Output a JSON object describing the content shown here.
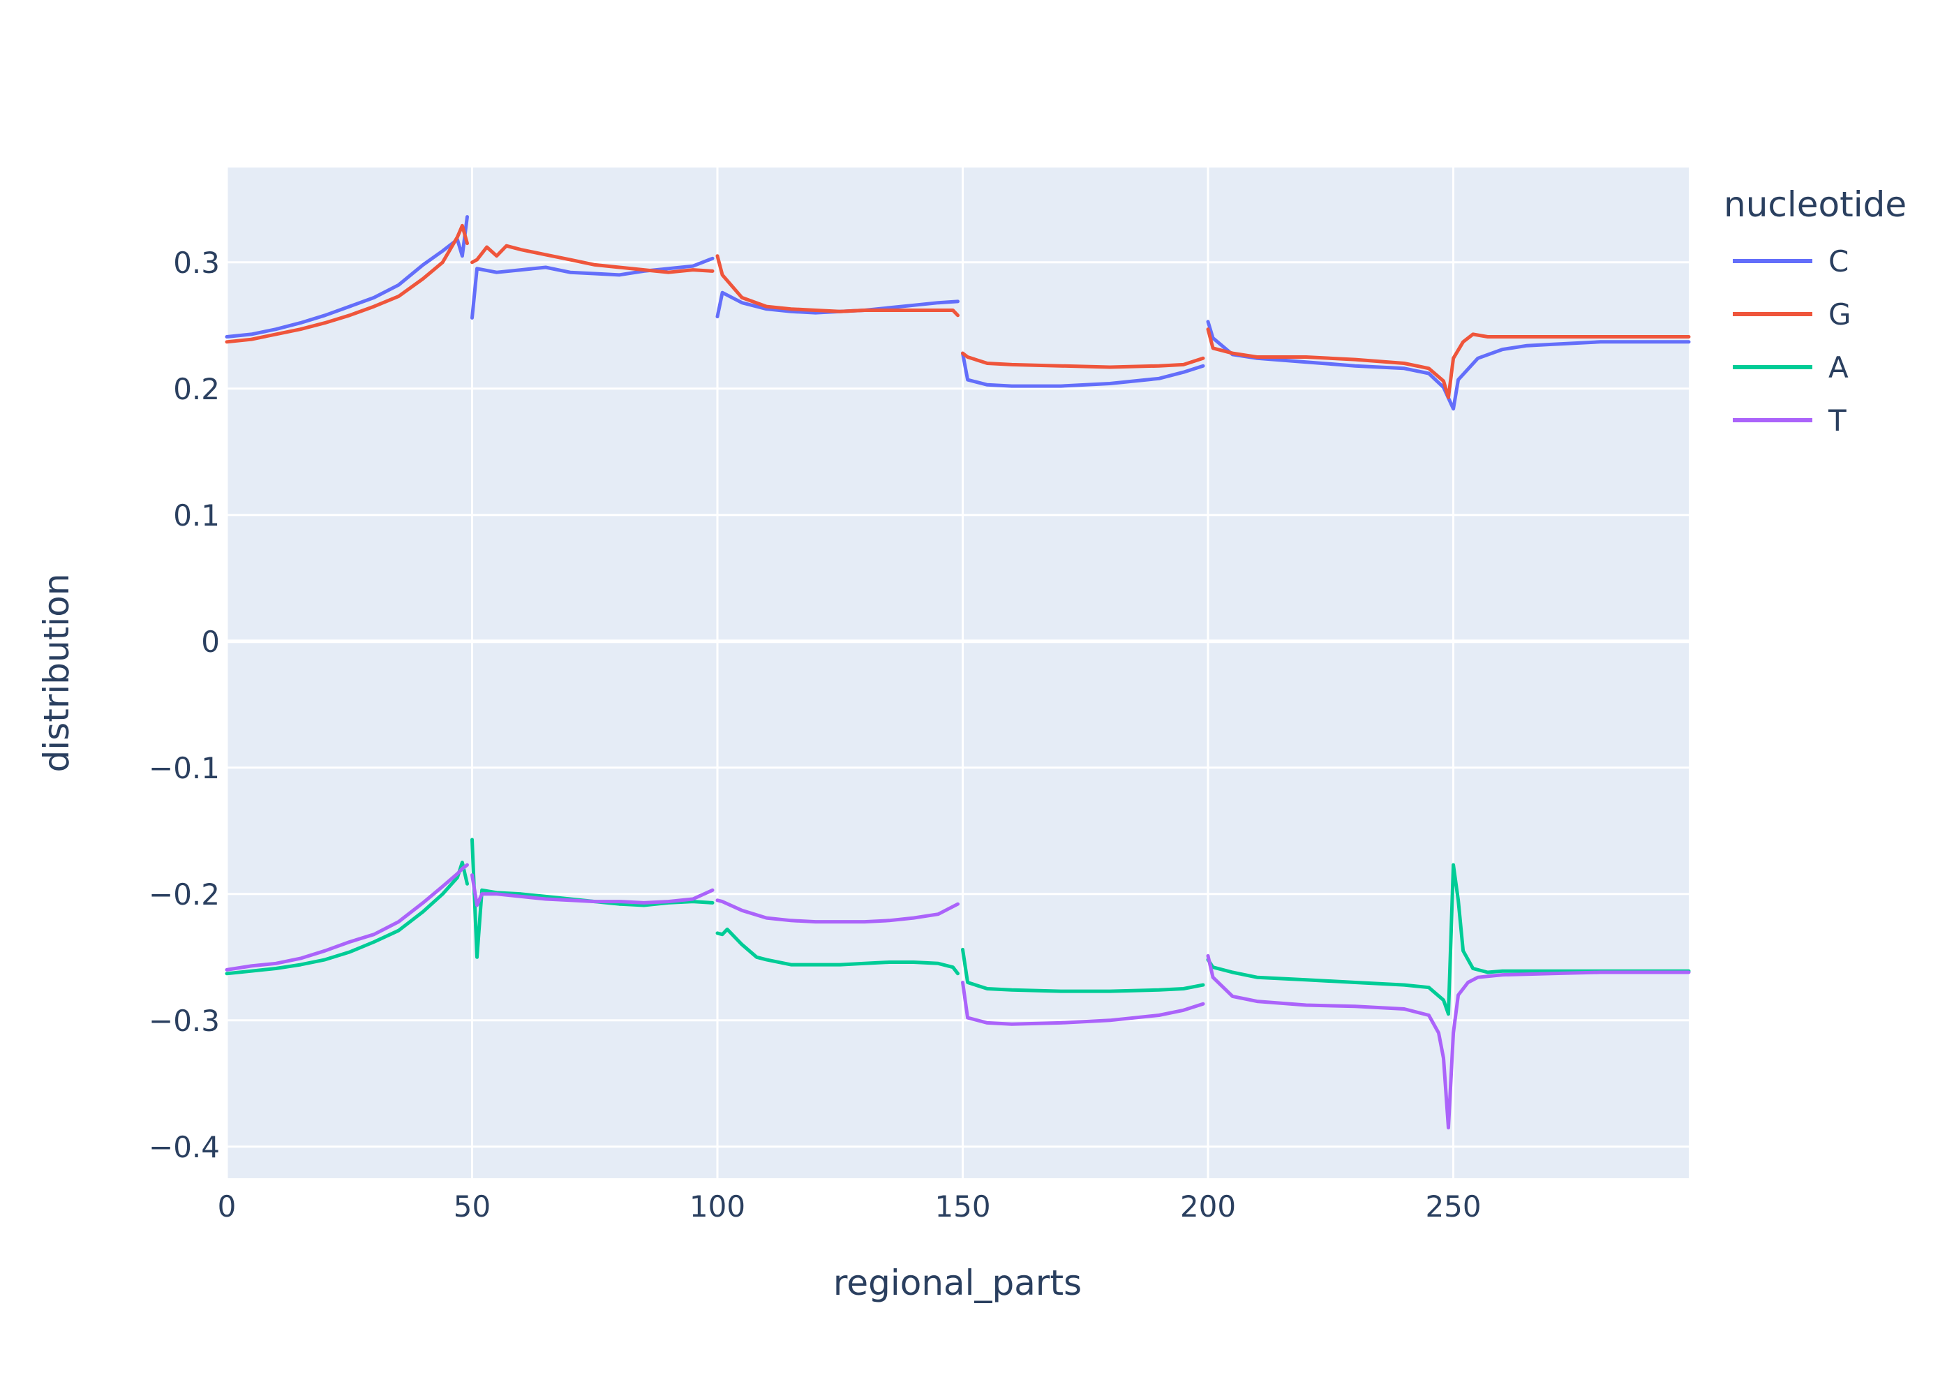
{
  "chart_data": {
    "type": "line",
    "xlabel": "regional_parts",
    "ylabel": "distribution",
    "xlim": [
      0,
      298
    ],
    "ylim": [
      -0.425,
      0.375
    ],
    "x_ticks": [
      0,
      50,
      100,
      150,
      200,
      250
    ],
    "y_ticks": [
      0.3,
      0.2,
      0.1,
      0,
      -0.1,
      -0.2,
      -0.3,
      -0.4
    ],
    "y_tick_labels": [
      "0.3",
      "0.2",
      "0.1",
      "0",
      "−0.1",
      "−0.2",
      "−0.3",
      "−0.4"
    ],
    "grid": true,
    "legend": {
      "title": "nucleotide",
      "placement": "right"
    },
    "segment_breaks": [
      50,
      100,
      150,
      200
    ],
    "series": [
      {
        "name": "C",
        "color": "#636efa",
        "points": [
          [
            0,
            0.241
          ],
          [
            5,
            0.243
          ],
          [
            10,
            0.247
          ],
          [
            15,
            0.252
          ],
          [
            20,
            0.258
          ],
          [
            25,
            0.265
          ],
          [
            30,
            0.272
          ],
          [
            35,
            0.282
          ],
          [
            40,
            0.298
          ],
          [
            44,
            0.309
          ],
          [
            47,
            0.318
          ],
          [
            48,
            0.305
          ],
          [
            49,
            0.336
          ],
          [
            50,
            0.256
          ],
          [
            51,
            0.295
          ],
          [
            55,
            0.292
          ],
          [
            60,
            0.294
          ],
          [
            65,
            0.296
          ],
          [
            70,
            0.292
          ],
          [
            75,
            0.291
          ],
          [
            80,
            0.29
          ],
          [
            85,
            0.293
          ],
          [
            90,
            0.295
          ],
          [
            95,
            0.297
          ],
          [
            99,
            0.303
          ],
          [
            100,
            0.257
          ],
          [
            101,
            0.276
          ],
          [
            105,
            0.268
          ],
          [
            110,
            0.263
          ],
          [
            115,
            0.261
          ],
          [
            120,
            0.26
          ],
          [
            125,
            0.261
          ],
          [
            130,
            0.262
          ],
          [
            135,
            0.264
          ],
          [
            140,
            0.266
          ],
          [
            145,
            0.268
          ],
          [
            149,
            0.269
          ],
          [
            150,
            0.228
          ],
          [
            151,
            0.207
          ],
          [
            155,
            0.203
          ],
          [
            160,
            0.202
          ],
          [
            170,
            0.202
          ],
          [
            180,
            0.204
          ],
          [
            190,
            0.208
          ],
          [
            195,
            0.213
          ],
          [
            199,
            0.218
          ],
          [
            200,
            0.253
          ],
          [
            201,
            0.24
          ],
          [
            205,
            0.227
          ],
          [
            210,
            0.224
          ],
          [
            220,
            0.221
          ],
          [
            230,
            0.218
          ],
          [
            240,
            0.216
          ],
          [
            245,
            0.212
          ],
          [
            248,
            0.201
          ],
          [
            250,
            0.184
          ],
          [
            251,
            0.207
          ],
          [
            255,
            0.224
          ],
          [
            260,
            0.231
          ],
          [
            265,
            0.234
          ],
          [
            270,
            0.235
          ],
          [
            280,
            0.237
          ],
          [
            290,
            0.237
          ],
          [
            298,
            0.237
          ]
        ]
      },
      {
        "name": "G",
        "color": "#ef553b",
        "points": [
          [
            0,
            0.237
          ],
          [
            5,
            0.239
          ],
          [
            10,
            0.243
          ],
          [
            15,
            0.247
          ],
          [
            20,
            0.252
          ],
          [
            25,
            0.258
          ],
          [
            30,
            0.265
          ],
          [
            35,
            0.273
          ],
          [
            40,
            0.287
          ],
          [
            44,
            0.3
          ],
          [
            47,
            0.32
          ],
          [
            48,
            0.329
          ],
          [
            49,
            0.315
          ],
          [
            50,
            0.3
          ],
          [
            51,
            0.302
          ],
          [
            53,
            0.312
          ],
          [
            55,
            0.305
          ],
          [
            57,
            0.313
          ],
          [
            60,
            0.31
          ],
          [
            65,
            0.306
          ],
          [
            70,
            0.302
          ],
          [
            75,
            0.298
          ],
          [
            80,
            0.296
          ],
          [
            85,
            0.294
          ],
          [
            90,
            0.292
          ],
          [
            95,
            0.294
          ],
          [
            99,
            0.293
          ],
          [
            100,
            0.305
          ],
          [
            101,
            0.29
          ],
          [
            105,
            0.272
          ],
          [
            110,
            0.265
          ],
          [
            115,
            0.263
          ],
          [
            120,
            0.262
          ],
          [
            125,
            0.261
          ],
          [
            130,
            0.262
          ],
          [
            135,
            0.262
          ],
          [
            140,
            0.262
          ],
          [
            145,
            0.262
          ],
          [
            148,
            0.262
          ],
          [
            149,
            0.258
          ],
          [
            150,
            0.228
          ],
          [
            151,
            0.225
          ],
          [
            155,
            0.22
          ],
          [
            160,
            0.219
          ],
          [
            170,
            0.218
          ],
          [
            180,
            0.217
          ],
          [
            190,
            0.218
          ],
          [
            195,
            0.219
          ],
          [
            199,
            0.224
          ],
          [
            200,
            0.247
          ],
          [
            201,
            0.232
          ],
          [
            205,
            0.228
          ],
          [
            210,
            0.225
          ],
          [
            220,
            0.225
          ],
          [
            230,
            0.223
          ],
          [
            240,
            0.22
          ],
          [
            245,
            0.216
          ],
          [
            248,
            0.206
          ],
          [
            249,
            0.193
          ],
          [
            250,
            0.224
          ],
          [
            252,
            0.237
          ],
          [
            254,
            0.243
          ],
          [
            257,
            0.241
          ],
          [
            260,
            0.241
          ],
          [
            270,
            0.241
          ],
          [
            280,
            0.241
          ],
          [
            290,
            0.241
          ],
          [
            298,
            0.241
          ]
        ]
      },
      {
        "name": "A",
        "color": "#00cc96",
        "points": [
          [
            0,
            -0.263
          ],
          [
            5,
            -0.261
          ],
          [
            10,
            -0.259
          ],
          [
            15,
            -0.256
          ],
          [
            20,
            -0.252
          ],
          [
            25,
            -0.246
          ],
          [
            30,
            -0.238
          ],
          [
            35,
            -0.229
          ],
          [
            40,
            -0.214
          ],
          [
            44,
            -0.2
          ],
          [
            47,
            -0.187
          ],
          [
            48,
            -0.175
          ],
          [
            49,
            -0.192
          ],
          [
            50,
            -0.157
          ],
          [
            51,
            -0.25
          ],
          [
            52,
            -0.197
          ],
          [
            55,
            -0.199
          ],
          [
            60,
            -0.2
          ],
          [
            65,
            -0.202
          ],
          [
            70,
            -0.204
          ],
          [
            75,
            -0.206
          ],
          [
            80,
            -0.208
          ],
          [
            85,
            -0.209
          ],
          [
            90,
            -0.207
          ],
          [
            95,
            -0.206
          ],
          [
            99,
            -0.207
          ],
          [
            100,
            -0.231
          ],
          [
            101,
            -0.232
          ],
          [
            102,
            -0.228
          ],
          [
            105,
            -0.24
          ],
          [
            108,
            -0.25
          ],
          [
            110,
            -0.252
          ],
          [
            115,
            -0.256
          ],
          [
            120,
            -0.256
          ],
          [
            125,
            -0.256
          ],
          [
            130,
            -0.255
          ],
          [
            135,
            -0.254
          ],
          [
            140,
            -0.254
          ],
          [
            145,
            -0.255
          ],
          [
            148,
            -0.258
          ],
          [
            149,
            -0.263
          ],
          [
            150,
            -0.244
          ],
          [
            151,
            -0.27
          ],
          [
            155,
            -0.275
          ],
          [
            160,
            -0.276
          ],
          [
            170,
            -0.277
          ],
          [
            180,
            -0.277
          ],
          [
            190,
            -0.276
          ],
          [
            195,
            -0.275
          ],
          [
            199,
            -0.272
          ],
          [
            200,
            -0.252
          ],
          [
            201,
            -0.258
          ],
          [
            205,
            -0.262
          ],
          [
            210,
            -0.266
          ],
          [
            220,
            -0.268
          ],
          [
            230,
            -0.27
          ],
          [
            240,
            -0.272
          ],
          [
            245,
            -0.274
          ],
          [
            248,
            -0.284
          ],
          [
            249,
            -0.295
          ],
          [
            250,
            -0.177
          ],
          [
            251,
            -0.205
          ],
          [
            252,
            -0.245
          ],
          [
            254,
            -0.259
          ],
          [
            257,
            -0.262
          ],
          [
            260,
            -0.261
          ],
          [
            270,
            -0.261
          ],
          [
            280,
            -0.261
          ],
          [
            290,
            -0.261
          ],
          [
            298,
            -0.261
          ]
        ]
      },
      {
        "name": "T",
        "color": "#ab63fa",
        "points": [
          [
            0,
            -0.26
          ],
          [
            5,
            -0.257
          ],
          [
            10,
            -0.255
          ],
          [
            15,
            -0.251
          ],
          [
            20,
            -0.245
          ],
          [
            25,
            -0.238
          ],
          [
            30,
            -0.232
          ],
          [
            35,
            -0.222
          ],
          [
            40,
            -0.207
          ],
          [
            44,
            -0.194
          ],
          [
            47,
            -0.184
          ],
          [
            48,
            -0.18
          ],
          [
            49,
            -0.177
          ],
          [
            50,
            -0.185
          ],
          [
            51,
            -0.209
          ],
          [
            52,
            -0.2
          ],
          [
            55,
            -0.2
          ],
          [
            60,
            -0.202
          ],
          [
            65,
            -0.204
          ],
          [
            70,
            -0.205
          ],
          [
            75,
            -0.206
          ],
          [
            80,
            -0.206
          ],
          [
            85,
            -0.207
          ],
          [
            90,
            -0.206
          ],
          [
            95,
            -0.204
          ],
          [
            99,
            -0.197
          ],
          [
            100,
            -0.205
          ],
          [
            101,
            -0.206
          ],
          [
            105,
            -0.213
          ],
          [
            110,
            -0.219
          ],
          [
            115,
            -0.221
          ],
          [
            120,
            -0.222
          ],
          [
            125,
            -0.222
          ],
          [
            130,
            -0.222
          ],
          [
            135,
            -0.221
          ],
          [
            140,
            -0.219
          ],
          [
            145,
            -0.216
          ],
          [
            149,
            -0.208
          ],
          [
            150,
            -0.27
          ],
          [
            151,
            -0.298
          ],
          [
            155,
            -0.302
          ],
          [
            160,
            -0.303
          ],
          [
            170,
            -0.302
          ],
          [
            180,
            -0.3
          ],
          [
            190,
            -0.296
          ],
          [
            195,
            -0.292
          ],
          [
            199,
            -0.287
          ],
          [
            200,
            -0.249
          ],
          [
            201,
            -0.266
          ],
          [
            205,
            -0.281
          ],
          [
            210,
            -0.285
          ],
          [
            220,
            -0.288
          ],
          [
            230,
            -0.289
          ],
          [
            240,
            -0.291
          ],
          [
            245,
            -0.296
          ],
          [
            247,
            -0.31
          ],
          [
            248,
            -0.33
          ],
          [
            249,
            -0.385
          ],
          [
            250,
            -0.31
          ],
          [
            251,
            -0.28
          ],
          [
            253,
            -0.27
          ],
          [
            255,
            -0.266
          ],
          [
            260,
            -0.264
          ],
          [
            270,
            -0.263
          ],
          [
            280,
            -0.262
          ],
          [
            290,
            -0.262
          ],
          [
            298,
            -0.262
          ]
        ]
      }
    ]
  }
}
